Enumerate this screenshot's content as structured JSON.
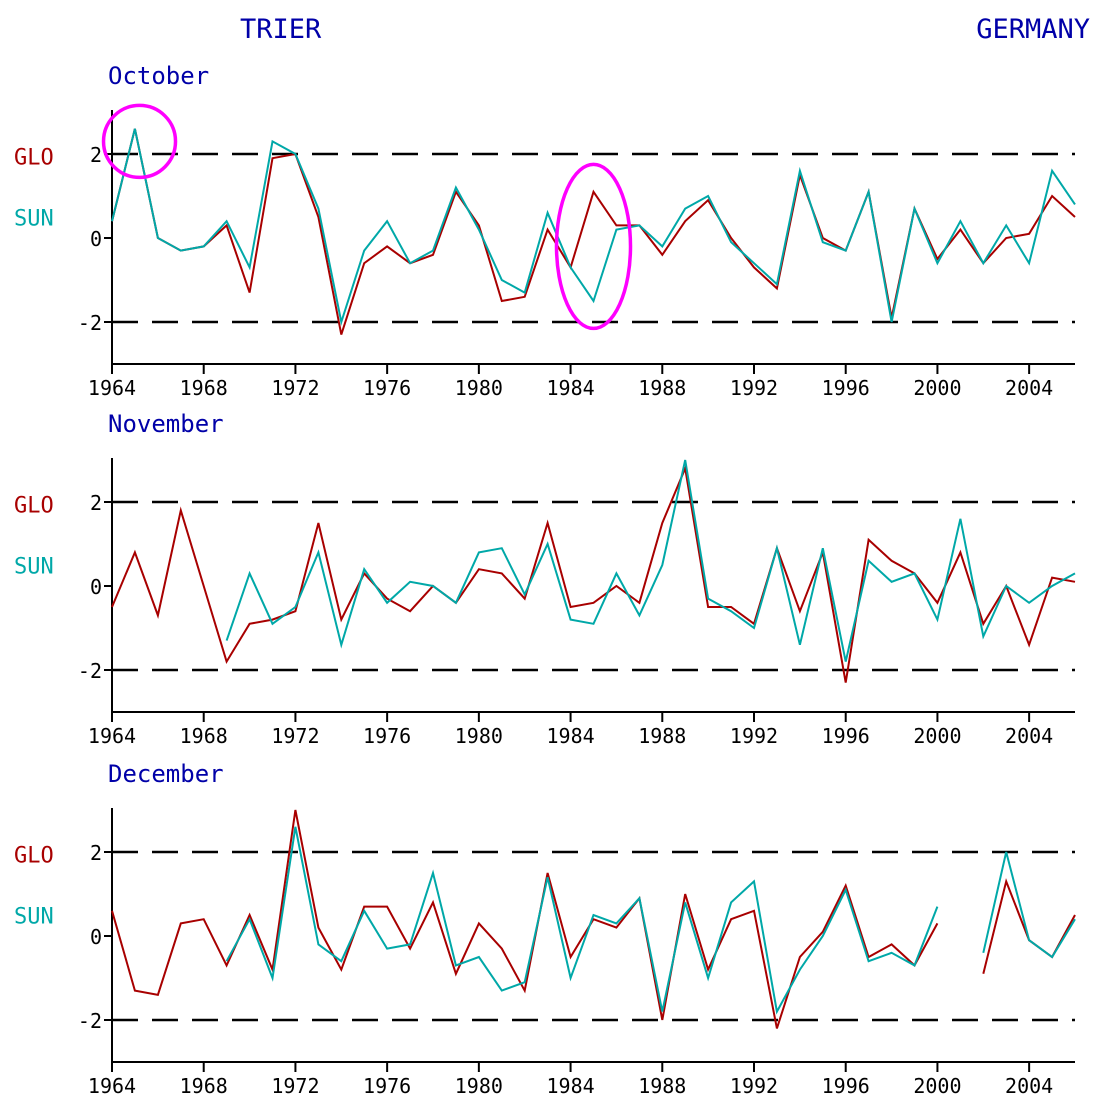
{
  "header": {
    "station": "TRIER",
    "country": "GERMANY"
  },
  "colors": {
    "title": "#0000a8",
    "glo": "#a80000",
    "sun": "#00a8a8",
    "axis": "#000000",
    "highlight": "#ff00ff"
  },
  "chart_data": [
    {
      "type": "line",
      "title": "October",
      "legend": [
        "GLO",
        "SUN"
      ],
      "ylim": [
        -3,
        3
      ],
      "xlim": [
        1964,
        2006
      ],
      "yticks": [
        2,
        0,
        -2
      ],
      "xticks": [
        1964,
        1968,
        1972,
        1976,
        1980,
        1984,
        1988,
        1992,
        1996,
        2000,
        2004
      ],
      "dashed_reference_lines": [
        2,
        -2
      ],
      "highlight_circles": [
        {
          "year": 1965.2,
          "value": 2.3
        },
        {
          "year": 1985.0,
          "value": -0.2
        }
      ],
      "series": [
        {
          "name": "GLO",
          "x": [
            1964,
            1965,
            1966,
            1967,
            1968,
            1969,
            1970,
            1971,
            1972,
            1973,
            1974,
            1975,
            1976,
            1977,
            1978,
            1979,
            1980,
            1981,
            1982,
            1983,
            1984,
            1985,
            1986,
            1987,
            1988,
            1989,
            1990,
            1991,
            1992,
            1993,
            1994,
            1995,
            1996,
            1997,
            1998,
            1999,
            2000,
            2001,
            2002,
            2003,
            2004,
            2005,
            2006
          ],
          "y": [
            0.4,
            2.6,
            0.0,
            -0.3,
            -0.2,
            0.3,
            -1.3,
            1.9,
            2.0,
            0.5,
            -2.3,
            -0.6,
            -0.2,
            -0.6,
            -0.4,
            1.1,
            0.3,
            -1.5,
            -1.4,
            0.2,
            -0.7,
            1.1,
            0.3,
            0.3,
            -0.4,
            0.4,
            0.9,
            0.0,
            -0.7,
            -1.2,
            1.5,
            0.0,
            -0.3,
            1.1,
            -1.9,
            0.7,
            -0.5,
            0.2,
            -0.6,
            0.0,
            0.1,
            1.0,
            0.5
          ]
        },
        {
          "name": "SUN",
          "x": [
            1964,
            1965,
            1966,
            1967,
            1968,
            1969,
            1970,
            1971,
            1972,
            1973,
            1974,
            1975,
            1976,
            1977,
            1978,
            1979,
            1980,
            1981,
            1982,
            1983,
            1984,
            1985,
            1986,
            1987,
            1988,
            1989,
            1990,
            1991,
            1992,
            1993,
            1994,
            1995,
            1996,
            1997,
            1998,
            1999,
            2000,
            2001,
            2002,
            2003,
            2004,
            2005,
            2006
          ],
          "y": [
            0.4,
            2.6,
            0.0,
            -0.3,
            -0.2,
            0.4,
            -0.7,
            2.3,
            2.0,
            0.7,
            -2.0,
            -0.3,
            0.4,
            -0.6,
            -0.3,
            1.2,
            0.2,
            -1.0,
            -1.3,
            0.6,
            -0.7,
            -1.5,
            0.2,
            0.3,
            -0.2,
            0.7,
            1.0,
            -0.1,
            -0.6,
            -1.1,
            1.6,
            -0.1,
            -0.3,
            1.1,
            -2.0,
            0.7,
            -0.6,
            0.4,
            -0.6,
            0.3,
            -0.6,
            1.6,
            0.8
          ]
        }
      ]
    },
    {
      "type": "line",
      "title": "November",
      "legend": [
        "GLO",
        "SUN"
      ],
      "ylim": [
        -3,
        3
      ],
      "xlim": [
        1964,
        2006
      ],
      "yticks": [
        2,
        0,
        -2
      ],
      "xticks": [
        1964,
        1968,
        1972,
        1976,
        1980,
        1984,
        1988,
        1992,
        1996,
        2000,
        2004
      ],
      "dashed_reference_lines": [
        2,
        -2
      ],
      "highlight_circles": [],
      "series": [
        {
          "name": "GLO",
          "x": [
            1964,
            1965,
            1966,
            1967,
            1968,
            1969,
            1970,
            1971,
            1972,
            1973,
            1974,
            1975,
            1976,
            1977,
            1978,
            1979,
            1980,
            1981,
            1982,
            1983,
            1984,
            1985,
            1986,
            1987,
            1988,
            1989,
            1990,
            1991,
            1992,
            1993,
            1994,
            1995,
            1996,
            1997,
            1998,
            1999,
            2000,
            2001,
            2002,
            2003,
            2004,
            2005,
            2006
          ],
          "y": [
            -0.5,
            0.8,
            -0.7,
            1.8,
            0.0,
            -1.8,
            -0.9,
            -0.8,
            -0.6,
            1.5,
            -0.8,
            0.3,
            -0.3,
            -0.6,
            0.0,
            -0.4,
            0.4,
            0.3,
            -0.3,
            1.5,
            -0.5,
            -0.4,
            0.0,
            -0.4,
            1.5,
            2.8,
            -0.5,
            -0.5,
            -0.9,
            0.9,
            -0.6,
            0.8,
            -2.3,
            1.1,
            0.6,
            0.3,
            -0.4,
            0.8,
            -0.9,
            0.0,
            -1.4,
            0.2,
            0.1
          ]
        },
        {
          "name": "SUN",
          "x": [
            1964,
            1965,
            1966,
            1967,
            1968,
            1969,
            1970,
            1971,
            1972,
            1973,
            1974,
            1975,
            1976,
            1977,
            1978,
            1979,
            1980,
            1981,
            1982,
            1983,
            1984,
            1985,
            1986,
            1987,
            1988,
            1989,
            1990,
            1991,
            1992,
            1993,
            1994,
            1995,
            1996,
            1997,
            1998,
            1999,
            2000,
            2001,
            2002,
            2003,
            2004,
            2005,
            2006
          ],
          "y": [
            null,
            null,
            null,
            null,
            null,
            -1.3,
            0.3,
            -0.9,
            -0.5,
            0.8,
            -1.4,
            0.4,
            -0.4,
            0.1,
            0.0,
            -0.4,
            0.8,
            0.9,
            -0.2,
            1.0,
            -0.8,
            -0.9,
            0.3,
            -0.7,
            0.5,
            3.0,
            -0.3,
            -0.6,
            -1.0,
            0.9,
            -1.4,
            0.9,
            -1.8,
            0.6,
            0.1,
            0.3,
            -0.8,
            1.6,
            -1.2,
            0.0,
            -0.4,
            0.0,
            0.3
          ]
        }
      ]
    },
    {
      "type": "line",
      "title": "December",
      "legend": [
        "GLO",
        "SUN"
      ],
      "ylim": [
        -3,
        3
      ],
      "xlim": [
        1964,
        2006
      ],
      "yticks": [
        2,
        0,
        -2
      ],
      "xticks": [
        1964,
        1968,
        1972,
        1976,
        1980,
        1984,
        1988,
        1992,
        1996,
        2000,
        2004
      ],
      "dashed_reference_lines": [
        2,
        -2
      ],
      "highlight_circles": [],
      "series": [
        {
          "name": "GLO",
          "x": [
            1964,
            1965,
            1966,
            1967,
            1968,
            1969,
            1970,
            1971,
            1972,
            1973,
            1974,
            1975,
            1976,
            1977,
            1978,
            1979,
            1980,
            1981,
            1982,
            1983,
            1984,
            1985,
            1986,
            1987,
            1988,
            1989,
            1990,
            1991,
            1992,
            1993,
            1994,
            1995,
            1996,
            1997,
            1998,
            1999,
            2000,
            2001,
            2002,
            2003,
            2004,
            2005,
            2006
          ],
          "y": [
            0.6,
            -1.3,
            -1.4,
            0.3,
            0.4,
            -0.7,
            0.5,
            -0.8,
            3.0,
            0.2,
            -0.8,
            0.7,
            0.7,
            -0.3,
            0.8,
            -0.9,
            0.3,
            -0.3,
            -1.3,
            1.5,
            -0.5,
            0.4,
            0.2,
            0.9,
            -2.0,
            1.0,
            -0.8,
            0.4,
            0.6,
            -2.2,
            -0.5,
            0.1,
            1.2,
            -0.5,
            -0.2,
            -0.7,
            0.3,
            null,
            -0.9,
            1.3,
            -0.1,
            -0.5,
            0.5
          ]
        },
        {
          "name": "SUN",
          "x": [
            1964,
            1965,
            1966,
            1967,
            1968,
            1969,
            1970,
            1971,
            1972,
            1973,
            1974,
            1975,
            1976,
            1977,
            1978,
            1979,
            1980,
            1981,
            1982,
            1983,
            1984,
            1985,
            1986,
            1987,
            1988,
            1989,
            1990,
            1991,
            1992,
            1993,
            1994,
            1995,
            1996,
            1997,
            1998,
            1999,
            2000,
            2001,
            2002,
            2003,
            2004,
            2005,
            2006
          ],
          "y": [
            null,
            null,
            null,
            null,
            null,
            -0.6,
            0.4,
            -1.0,
            2.6,
            -0.2,
            -0.6,
            0.6,
            -0.3,
            -0.2,
            1.5,
            -0.7,
            -0.5,
            -1.3,
            -1.1,
            1.4,
            -1.0,
            0.5,
            0.3,
            0.9,
            -1.8,
            0.8,
            -1.0,
            0.8,
            1.3,
            -1.8,
            -0.8,
            0.0,
            1.1,
            -0.6,
            -0.4,
            -0.7,
            0.7,
            null,
            -0.4,
            2.0,
            -0.1,
            -0.5,
            0.4
          ]
        }
      ]
    }
  ]
}
